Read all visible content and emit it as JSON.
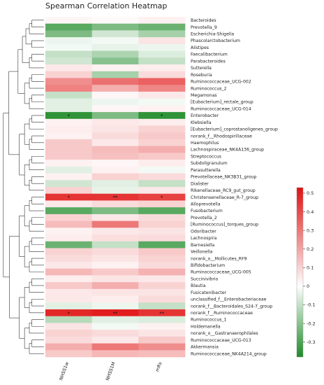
{
  "chart_data": {
    "type": "heatmap",
    "title": "Spearman Correlation Heatmap",
    "columns": [
      "NHSS1w",
      "NHSS1M",
      "mRs"
    ],
    "rows": [
      "Bacteroides",
      "Prevotella_9",
      "Escherichia-Shigella",
      "Phascolarctobacterium",
      "Alistipes",
      "Faecalibacterium",
      "Parabacteroides",
      "Sutterella",
      "Roseburia",
      "Ruminococcaceae_UCG-002",
      "Ruminococcus_2",
      "Megamonas",
      "[Eubacterium]_rectale_group",
      "Ruminococcaceae_UCG-014",
      "Enterobacter",
      "Klebsiella",
      "[Eubacterium]_coprostanoligenes_group",
      "norank_f__Rhodospirillaceae",
      "Haemophilus",
      "Lachnospiraceae_NK4A136_group",
      "Streptococcus",
      "Subdoligranulum",
      "Parasutterella",
      "Prevotellaceae_NK3B31_group",
      "Dialister",
      "Rikenellaceae_RC9_gut_group",
      "Christensenellaceae_R-7_group",
      "Alloprevotella",
      "Fusobacterium",
      "Prevotella_2",
      "[Ruminococcus]_torques_group",
      "Odoribacter",
      "Lachnospira",
      "Barnesiella",
      "Veillonella",
      "norank_o__Mollicutes_RF9",
      "Bifidobacterium",
      "Ruminococcaceae_UCG-005",
      "Succinivibrio",
      "Blautia",
      "Fusicatenibacter",
      "unclassified_f__Enterobacteriaceae",
      "norank_f__Bacteroidales_S24-7_group",
      "norank_f__Ruminococcaceae",
      "Ruminococcus_1",
      "Holdemanella",
      "norank_o__Gastranaerophilales",
      "Ruminococcaceae_UCG-013",
      "Akkermansia",
      "Ruminococcaceae_NK4A214_group"
    ],
    "values": [
      [
        0.02,
        0.01,
        0.03
      ],
      [
        -0.28,
        -0.22,
        -0.25
      ],
      [
        -0.22,
        -0.08,
        -0.15
      ],
      [
        -0.03,
        -0.02,
        0.06
      ],
      [
        -0.02,
        -0.04,
        -0.03
      ],
      [
        -0.1,
        -0.14,
        -0.06
      ],
      [
        -0.08,
        -0.2,
        -0.1
      ],
      [
        0.05,
        0.03,
        0.04
      ],
      [
        0.1,
        -0.15,
        0.08
      ],
      [
        0.25,
        0.32,
        0.35
      ],
      [
        0.28,
        0.18,
        0.27
      ],
      [
        -0.1,
        0.02,
        0.05
      ],
      [
        -0.05,
        -0.03,
        -0.02
      ],
      [
        -0.05,
        0.02,
        0.03
      ],
      [
        -0.35,
        -0.22,
        -0.35
      ],
      [
        0.03,
        0.05,
        0.04
      ],
      [
        0.04,
        0.06,
        0.1
      ],
      [
        0.03,
        0.08,
        0.12
      ],
      [
        0.12,
        0.05,
        0.1
      ],
      [
        0.12,
        0.15,
        0.18
      ],
      [
        0.12,
        0.14,
        0.12
      ],
      [
        0.03,
        0.02,
        0.04
      ],
      [
        -0.05,
        0.03,
        -0.02
      ],
      [
        0.03,
        0.1,
        0.08
      ],
      [
        -0.08,
        -0.05,
        -0.1
      ],
      [
        0.1,
        -0.04,
        0.05
      ],
      [
        0.45,
        0.45,
        0.42
      ],
      [
        0.05,
        0.08,
        0.1
      ],
      [
        -0.28,
        -0.22,
        -0.28
      ],
      [
        0.1,
        0.05,
        0.08
      ],
      [
        0.15,
        0.3,
        0.1
      ],
      [
        0.03,
        0.05,
        0.06
      ],
      [
        0.04,
        0.07,
        0.08
      ],
      [
        -0.25,
        -0.1,
        -0.28
      ],
      [
        0.1,
        0.08,
        0.12
      ],
      [
        0.08,
        0.06,
        0.1
      ],
      [
        0.05,
        0.03,
        0.08
      ],
      [
        0.16,
        0.12,
        0.17
      ],
      [
        0.04,
        0.06,
        0.05
      ],
      [
        0.12,
        0.18,
        0.1
      ],
      [
        0.05,
        0.06,
        0.06
      ],
      [
        0.05,
        0.04,
        0.08
      ],
      [
        -0.05,
        -0.03,
        -0.1
      ],
      [
        0.48,
        0.5,
        0.45
      ],
      [
        -0.12,
        -0.05,
        -0.06
      ],
      [
        0.06,
        -0.02,
        0.03
      ],
      [
        0.1,
        0.08,
        0.06
      ],
      [
        0.08,
        0.05,
        0.12
      ],
      [
        0.18,
        0.3,
        0.25
      ],
      [
        0.12,
        0.16,
        0.15
      ]
    ],
    "significance": [
      [
        "",
        "",
        ""
      ],
      [
        "",
        "",
        ""
      ],
      [
        "",
        "",
        ""
      ],
      [
        "",
        "",
        ""
      ],
      [
        "",
        "",
        ""
      ],
      [
        "",
        "",
        ""
      ],
      [
        "",
        "",
        ""
      ],
      [
        "",
        "",
        ""
      ],
      [
        "",
        "",
        ""
      ],
      [
        "",
        "",
        ""
      ],
      [
        "",
        "",
        ""
      ],
      [
        "",
        "",
        ""
      ],
      [
        "",
        "",
        ""
      ],
      [
        "",
        "",
        ""
      ],
      [
        "*",
        "",
        "*"
      ],
      [
        "",
        "",
        ""
      ],
      [
        "",
        "",
        ""
      ],
      [
        "",
        "",
        ""
      ],
      [
        "",
        "",
        ""
      ],
      [
        "",
        "",
        ""
      ],
      [
        "",
        "",
        ""
      ],
      [
        "",
        "",
        ""
      ],
      [
        "",
        "",
        ""
      ],
      [
        "",
        "",
        ""
      ],
      [
        "",
        "",
        ""
      ],
      [
        "",
        "",
        ""
      ],
      [
        "*",
        "**",
        "*"
      ],
      [
        "",
        "",
        ""
      ],
      [
        "",
        "",
        ""
      ],
      [
        "",
        "",
        ""
      ],
      [
        "",
        "",
        ""
      ],
      [
        "",
        "",
        ""
      ],
      [
        "",
        "",
        ""
      ],
      [
        "",
        "",
        ""
      ],
      [
        "",
        "",
        ""
      ],
      [
        "",
        "",
        ""
      ],
      [
        "",
        "",
        ""
      ],
      [
        "",
        "",
        ""
      ],
      [
        "",
        "",
        ""
      ],
      [
        "",
        "",
        ""
      ],
      [
        "",
        "",
        ""
      ],
      [
        "",
        "",
        ""
      ],
      [
        "",
        "",
        ""
      ],
      [
        "*",
        "**",
        "**"
      ],
      [
        "",
        "",
        ""
      ],
      [
        "",
        "",
        ""
      ],
      [
        "",
        "",
        ""
      ],
      [
        "",
        "",
        ""
      ],
      [
        "",
        "",
        ""
      ],
      [
        "",
        "",
        ""
      ]
    ],
    "colorbar": {
      "min": -0.38,
      "max": 0.53,
      "ticks": [
        -0.3,
        -0.2,
        -0.1,
        0,
        0.1,
        0.2,
        0.3,
        0.4,
        0.5
      ],
      "tick_labels": [
        "-0.3",
        "-0.2",
        "-0.1",
        "0",
        "0.1",
        "0.2",
        "0.3",
        "0.4",
        "0.5"
      ],
      "colors": [
        "#1e8a28",
        "#ffffff",
        "#e01010"
      ],
      "placement": "right"
    },
    "dendrogram": "left"
  }
}
